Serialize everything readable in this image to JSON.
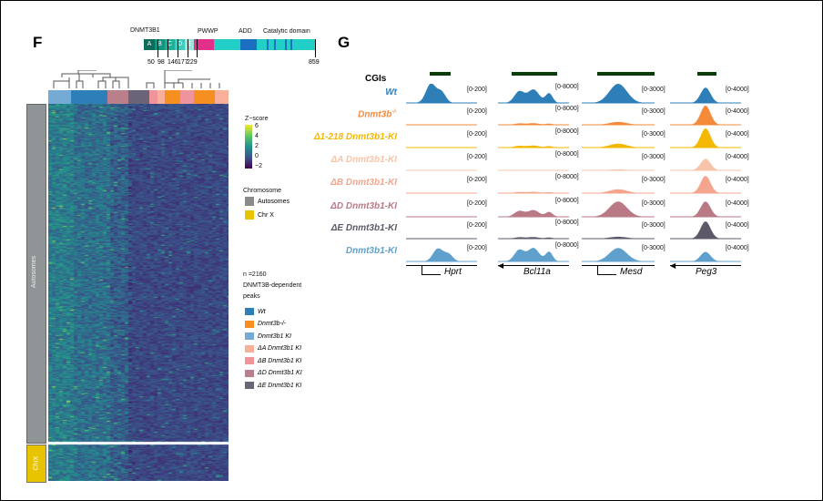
{
  "panel_f": {
    "label": "F",
    "protein": "DNMT3B1",
    "domains": [
      {
        "name": "A",
        "color": "#0e6b5a"
      },
      {
        "name": "B",
        "color": "#139480"
      },
      {
        "name": "C",
        "color": "#1fb09a"
      },
      {
        "name": "D",
        "color": "#3fcbbd"
      },
      {
        "name": "E",
        "color": "#9de3da"
      },
      {
        "name": "PWWP",
        "color": "#e0308a"
      },
      {
        "name": "ADD",
        "color": "#1a6fc0"
      },
      {
        "name": "Catalytic domain",
        "color": "#22cfc6"
      }
    ],
    "positions": [
      "50",
      "98",
      "146",
      "177",
      "229",
      "859"
    ],
    "zscore": {
      "title": "Z−score",
      "ticks": [
        "6",
        "4",
        "2",
        "0",
        "−2"
      ]
    },
    "chromosome": {
      "title": "Chromosome",
      "items": [
        {
          "label": "Autosomes",
          "color": "#8a8a8a"
        },
        {
          "label": "Chr X",
          "color": "#e8c400"
        }
      ]
    },
    "row_groups": [
      "Autosomes",
      "ChrX"
    ],
    "n_text": "n =2160",
    "peaks_text": "DNMT3B-dependent",
    "peaks_text2": "peaks",
    "samples": [
      {
        "label": "Wt",
        "color": "#2e7fb8"
      },
      {
        "label": "Dnmt3b-/-",
        "color": "#f59020"
      },
      {
        "label": "Dnmt3b1 KI",
        "color": "#74aad4"
      },
      {
        "label": "ΔA Dnmt3b1 KI",
        "color": "#f9b09a"
      },
      {
        "label": "ΔB Dnmt3b1 KI",
        "color": "#ee949a"
      },
      {
        "label": "ΔD Dnmt3b1 KI",
        "color": "#b97f8a"
      },
      {
        "label": "ΔE Dnmt3b1 KI",
        "color": "#6a6478"
      }
    ]
  },
  "panel_g": {
    "label": "G",
    "cgi_label": "CGIs",
    "rows": [
      {
        "label": "Wt",
        "sup": "",
        "color": "#2e7fb8"
      },
      {
        "label": "Dnmt3b",
        "sup": "-/-",
        "color": "#f58a3a"
      },
      {
        "label": "Δ1-218 Dnmt3b1-KI",
        "sup": "",
        "color": "#f5b800"
      },
      {
        "label": "ΔA Dnmt3b1-KI",
        "sup": "",
        "color": "#f9c3a8"
      },
      {
        "label": "ΔB Dnmt3b1-KI",
        "sup": "",
        "color": "#f4a58e"
      },
      {
        "label": "ΔD Dnmt3b1-KI",
        "sup": "",
        "color": "#b97a86"
      },
      {
        "label": "ΔE Dnmt3b1-KI",
        "sup": "",
        "color": "#5c5868"
      },
      {
        "label": "Dnmt3b1-KI",
        "sup": "",
        "color": "#5fa0cc"
      }
    ],
    "genes": [
      {
        "name": "Hprt",
        "range": "[0-200]",
        "strand": "+"
      },
      {
        "name": "Bcl11a",
        "range": "[0-8000]",
        "strand": "-"
      },
      {
        "name": "Mesd",
        "range": "[0-3000]",
        "strand": "+"
      },
      {
        "name": "Peg3",
        "range": "[0-4000]",
        "strand": "-"
      }
    ]
  }
}
